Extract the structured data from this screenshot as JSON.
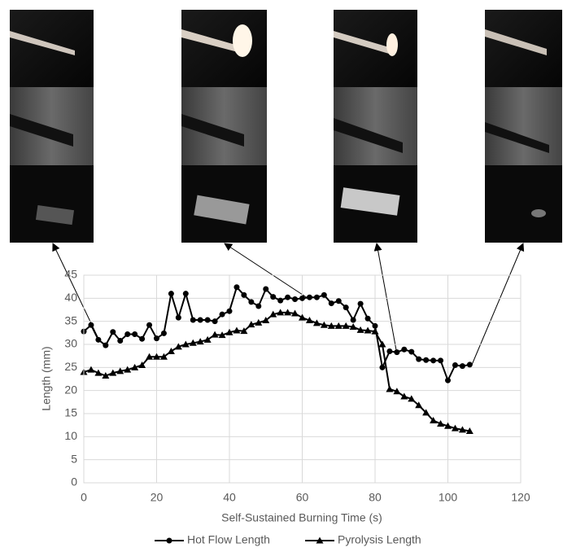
{
  "chart_data": {
    "type": "line",
    "x_label": "Self-Sustained Burning Time (s)",
    "y_label": "Length (mm)",
    "x": [
      0,
      2,
      4,
      6,
      8,
      10,
      12,
      14,
      16,
      18,
      20,
      22,
      24,
      26,
      28,
      30,
      32,
      34,
      36,
      38,
      40,
      42,
      44,
      46,
      48,
      50,
      52,
      54,
      56,
      58,
      60,
      62,
      64,
      66,
      68,
      70,
      72,
      74,
      76,
      78,
      80,
      82,
      84,
      86,
      88,
      90,
      92,
      94,
      96,
      98,
      100,
      102,
      104,
      106
    ],
    "series": [
      {
        "name": "Hot Flow Length",
        "color": "#000000",
        "marker": "circle",
        "values": [
          32.8,
          34.2,
          31,
          29.8,
          32.7,
          30.8,
          32.2,
          32.2,
          31.2,
          34.2,
          31.3,
          32.4,
          41,
          35.8,
          41,
          35.3,
          35.3,
          35.3,
          35,
          36.5,
          37.2,
          42.4,
          40.7,
          39.2,
          38.3,
          42,
          40.3,
          39.5,
          40.2,
          39.8,
          40,
          40.2,
          40.2,
          40.7,
          38.9,
          39.4,
          38,
          35.3,
          38.8,
          35.6,
          34,
          25,
          28.5,
          28.3,
          28.9,
          28.4,
          26.8,
          26.6,
          26.5,
          26.5,
          22.2,
          25.5,
          25.3,
          25.6
        ]
      },
      {
        "name": "Pyrolysis Length",
        "color": "#000000",
        "marker": "triangle",
        "values": [
          24,
          24.5,
          23.8,
          23.2,
          23.8,
          24.2,
          24.5,
          25,
          25.5,
          27.3,
          27.3,
          27.3,
          28.5,
          29.5,
          30,
          30.3,
          30.6,
          31,
          32.1,
          32,
          32.6,
          33,
          32.9,
          34.3,
          34.7,
          35.2,
          36.5,
          36.9,
          36.9,
          36.7,
          35.8,
          35.2,
          34.6,
          34.2,
          34,
          34,
          34,
          33.8,
          33.1,
          33,
          32.8,
          30,
          20.3,
          19.8,
          18.7,
          18.2,
          16.8,
          15.2,
          13.5,
          12.8,
          12.3,
          11.8,
          11.5,
          11.2
        ]
      }
    ],
    "xlim": [
      0,
      120
    ],
    "xticks": [
      0,
      20,
      40,
      60,
      80,
      100,
      120
    ],
    "ylim": [
      0,
      45
    ],
    "yticks": [
      0,
      5,
      10,
      15,
      20,
      25,
      30,
      35,
      40,
      45
    ],
    "grid": true,
    "legend": "bottom"
  }
}
